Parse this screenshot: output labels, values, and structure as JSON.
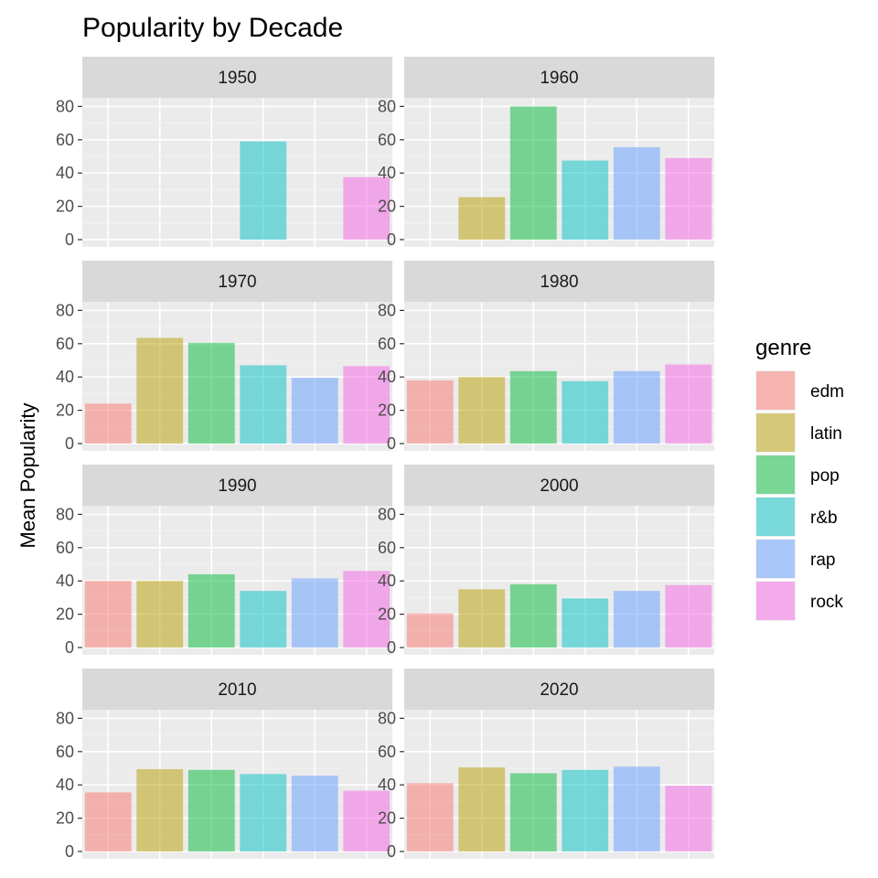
{
  "chart_data": {
    "type": "bar",
    "title": "Popularity by Decade",
    "xlabel": "",
    "ylabel": "Mean Popularity",
    "ylim": [
      0,
      80
    ],
    "yticks": [
      0,
      20,
      40,
      60,
      80
    ],
    "categories": [
      "edm",
      "latin",
      "pop",
      "r&b",
      "rap",
      "rock"
    ],
    "legend": {
      "title": "genre",
      "position": "right",
      "entries": [
        "edm",
        "latin",
        "pop",
        "r&b",
        "rap",
        "rock"
      ]
    },
    "colors": {
      "edm": "#F8766D",
      "latin": "#B79F00",
      "pop": "#00BA38",
      "r&b": "#00BFC4",
      "rap": "#619CFF",
      "rock": "#F564E3"
    },
    "fill_opacity": 0.5,
    "panels": [
      {
        "decade": "1950",
        "values": [
          null,
          null,
          null,
          59,
          null,
          37.5
        ]
      },
      {
        "decade": "1960",
        "values": [
          null,
          25.5,
          80,
          47.5,
          55.5,
          49
        ]
      },
      {
        "decade": "1970",
        "values": [
          24,
          63.5,
          60.5,
          47,
          39.5,
          46.5
        ]
      },
      {
        "decade": "1980",
        "values": [
          38,
          40,
          43.5,
          37.5,
          43.5,
          47.5
        ]
      },
      {
        "decade": "1990",
        "values": [
          40,
          40,
          44,
          34,
          41.5,
          46
        ]
      },
      {
        "decade": "2000",
        "values": [
          20.5,
          35,
          38,
          29.5,
          34,
          37.5
        ]
      },
      {
        "decade": "2010",
        "values": [
          35.5,
          49.5,
          49,
          46.5,
          45.5,
          36.5
        ]
      },
      {
        "decade": "2020",
        "values": [
          41,
          50.5,
          47,
          49,
          51,
          39.5
        ]
      }
    ]
  }
}
